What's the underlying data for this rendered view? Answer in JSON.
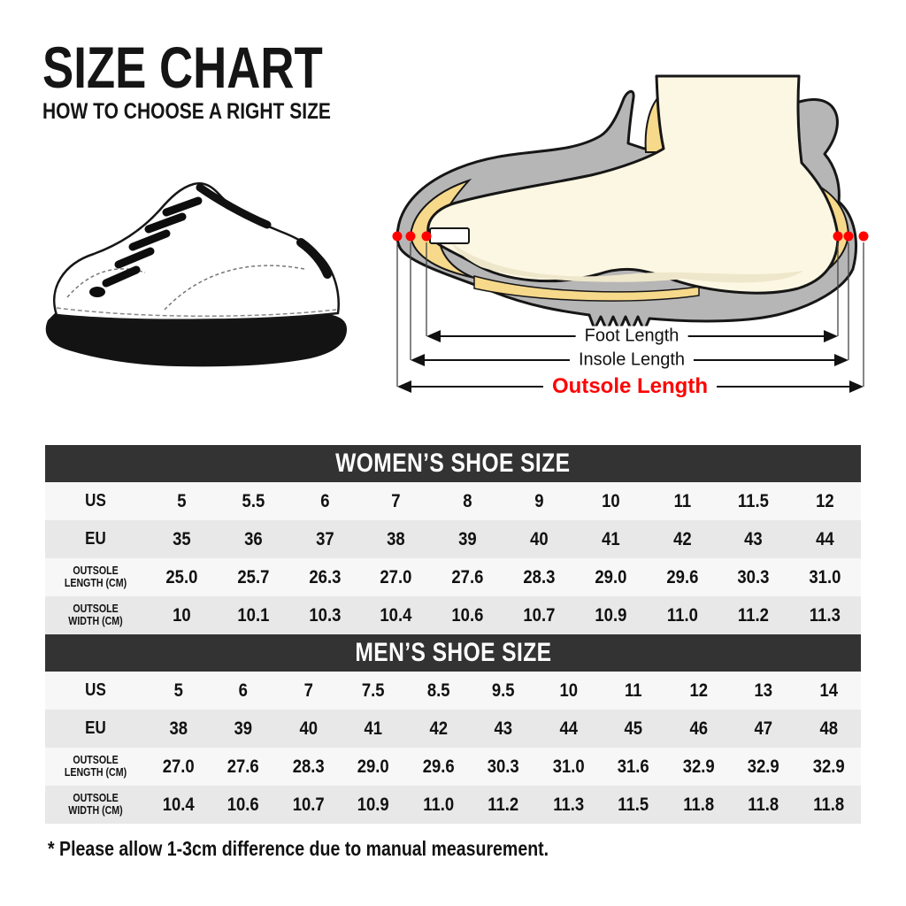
{
  "header": {
    "title": "SIZE CHART",
    "subtitle": "HOW TO CHOOSE A RIGHT SIZE"
  },
  "diagram": {
    "foot_length_label": "Foot Length",
    "insole_length_label": "Insole Length",
    "outsole_length_label": "Outsole Length"
  },
  "tables": [
    {
      "id": "womens",
      "title": "WOMEN’S SHOE SIZE",
      "rows": [
        {
          "label": "US",
          "values": [
            "5",
            "5.5",
            "6",
            "7",
            "8",
            "9",
            "10",
            "11",
            "11.5",
            "12"
          ]
        },
        {
          "label": "EU",
          "values": [
            "35",
            "36",
            "37",
            "38",
            "39",
            "40",
            "41",
            "42",
            "43",
            "44"
          ]
        },
        {
          "label": "OUTSOLE\nLENGTH (CM)",
          "values": [
            "25.0",
            "25.7",
            "26.3",
            "27.0",
            "27.6",
            "28.3",
            "29.0",
            "29.6",
            "30.3",
            "31.0"
          ]
        },
        {
          "label": "OUTSOLE\nWIDTH (CM)",
          "values": [
            "10",
            "10.1",
            "10.3",
            "10.4",
            "10.6",
            "10.7",
            "10.9",
            "11.0",
            "11.2",
            "11.3"
          ]
        }
      ]
    },
    {
      "id": "mens",
      "title": "MEN’S SHOE SIZE",
      "rows": [
        {
          "label": "US",
          "values": [
            "5",
            "6",
            "7",
            "7.5",
            "8.5",
            "9.5",
            "10",
            "11",
            "12",
            "13",
            "14"
          ]
        },
        {
          "label": "EU",
          "values": [
            "38",
            "39",
            "40",
            "41",
            "42",
            "43",
            "44",
            "45",
            "46",
            "47",
            "48"
          ]
        },
        {
          "label": "OUTSOLE\nLENGTH (CM)",
          "values": [
            "27.0",
            "27.6",
            "28.3",
            "29.0",
            "29.6",
            "30.3",
            "31.0",
            "31.6",
            "32.9",
            "32.9",
            "32.9"
          ]
        },
        {
          "label": "OUTSOLE\nWIDTH (CM)",
          "values": [
            "10.4",
            "10.6",
            "10.7",
            "10.9",
            "11.0",
            "11.2",
            "11.3",
            "11.5",
            "11.8",
            "11.8",
            "11.8"
          ]
        }
      ]
    }
  ],
  "footnote": "* Please allow 1-3cm difference due to manual measurement.",
  "colors": {
    "table_header_bg": "#333333",
    "row_light": "#f7f7f7",
    "row_shade": "#e8e8e8",
    "accent_red": "#fe0202",
    "shoe_shell_gray": "#b6b6b6",
    "insole_yellow": "#f7d98b",
    "foot_cream": "#fcf7e2"
  }
}
